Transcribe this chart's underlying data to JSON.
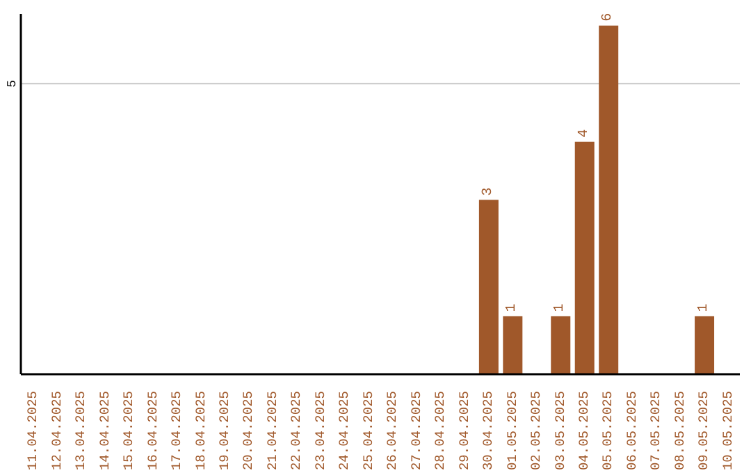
{
  "chart_data": {
    "type": "bar",
    "categories": [
      "11.04.2025",
      "12.04.2025",
      "13.04.2025",
      "14.04.2025",
      "15.04.2025",
      "16.04.2025",
      "17.04.2025",
      "18.04.2025",
      "19.04.2025",
      "20.04.2025",
      "21.04.2025",
      "22.04.2025",
      "23.04.2025",
      "24.04.2025",
      "25.04.2025",
      "26.04.2025",
      "27.04.2025",
      "28.04.2025",
      "29.04.2025",
      "30.04.2025",
      "01.05.2025",
      "02.05.2025",
      "03.05.2025",
      "04.05.2025",
      "05.05.2025",
      "06.05.2025",
      "07.05.2025",
      "08.05.2025",
      "09.05.2025",
      "10.05.2025"
    ],
    "values": [
      null,
      null,
      null,
      null,
      null,
      null,
      null,
      null,
      null,
      null,
      null,
      null,
      null,
      null,
      null,
      null,
      null,
      null,
      null,
      3,
      1,
      null,
      1,
      4,
      6,
      null,
      null,
      null,
      1,
      null
    ],
    "data_labels": true,
    "color": "#a0582a",
    "ylim": [
      0,
      6.2
    ],
    "yticks": [
      5
    ],
    "grid": "y"
  }
}
